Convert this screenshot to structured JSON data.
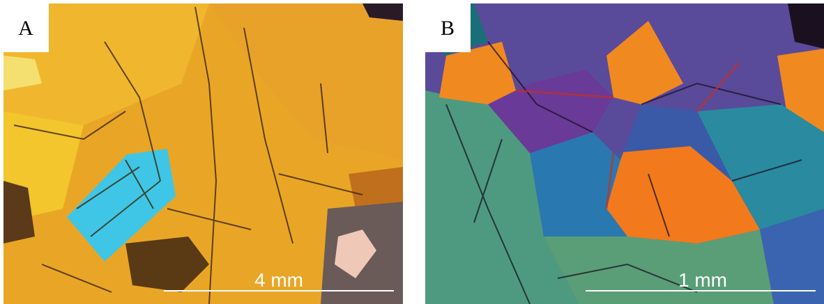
{
  "panels": [
    {
      "label": "A",
      "scale_bar": "4 mm"
    },
    {
      "label": "B",
      "scale_bar": "1 mm"
    }
  ]
}
